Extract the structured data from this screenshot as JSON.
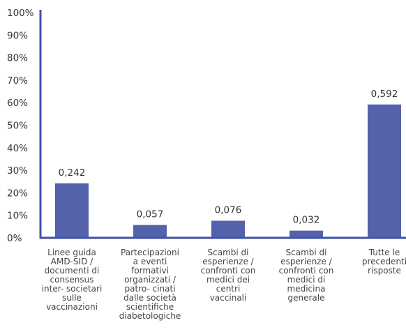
{
  "chart_data": {
    "type": "bar",
    "categories": [
      [
        "Linee guida",
        "AMD-SID /",
        "documenti di",
        "consensus",
        "inter- societari",
        "sulle",
        "vaccinazioni"
      ],
      [
        "Partecipazioni",
        "a eventi",
        "formativi",
        "organizzati /",
        "patro- cinati",
        "dalle società",
        "scientifiche",
        "diabetologiche"
      ],
      [
        "Scambi di",
        "esperienze /",
        "confronti con",
        "medici dei",
        "centri",
        "vaccinali"
      ],
      [
        "Scambi di",
        "esperienze /",
        "confronti con",
        "medici di",
        "medicina",
        "generale"
      ],
      [
        "Tutte le",
        "precedenti",
        "risposte"
      ]
    ],
    "values": [
      0.242,
      0.057,
      0.076,
      0.032,
      0.592
    ],
    "value_labels": [
      "0,242",
      "0,057",
      "0,076",
      "0,032",
      "0,592"
    ],
    "y_ticks": [
      "0%",
      "10%",
      "20%",
      "30%",
      "40%",
      "50%",
      "60%",
      "70%",
      "80%",
      "90%",
      "100%"
    ],
    "ylim": [
      0,
      1
    ],
    "title": "",
    "xlabel": "",
    "ylabel": "",
    "grid": false,
    "bar_color": "#5462AC",
    "axis_color": "#3F51A8"
  }
}
